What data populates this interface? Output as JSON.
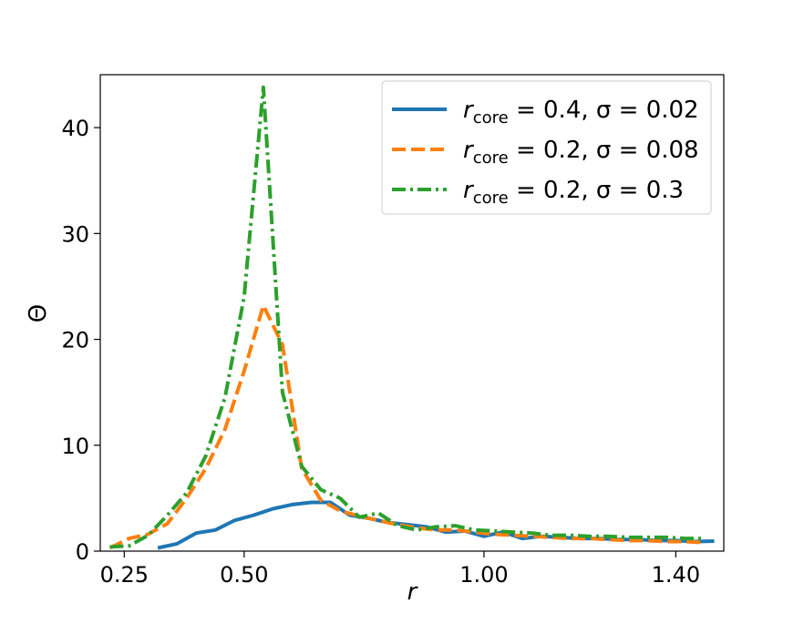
{
  "chart_data": {
    "type": "line",
    "title": "",
    "xlabel": "r",
    "ylabel": "Θ",
    "xlim": [
      0.2,
      1.5
    ],
    "ylim": [
      0,
      45
    ],
    "xticks": [
      0.25,
      0.5,
      1.0,
      1.4
    ],
    "xtick_labels": [
      "0.25",
      "0.50",
      "1.00",
      "1.40"
    ],
    "yticks": [
      0,
      10,
      20,
      30,
      40
    ],
    "ytick_labels": [
      "0",
      "10",
      "20",
      "30",
      "40"
    ],
    "grid": false,
    "legend_position": "top-right",
    "series": [
      {
        "name": "r_core = 0.4, σ = 0.02",
        "legend": {
          "main": "r",
          "sub": "core",
          "rest": " = 0.4, σ = 0.02"
        },
        "color": "#1f77b4",
        "style": "solid",
        "x": [
          0.32,
          0.36,
          0.4,
          0.44,
          0.48,
          0.52,
          0.56,
          0.6,
          0.64,
          0.68,
          0.72,
          0.76,
          0.8,
          0.84,
          0.88,
          0.92,
          0.96,
          1.0,
          1.04,
          1.08,
          1.12,
          1.16,
          1.2,
          1.24,
          1.28,
          1.32,
          1.36,
          1.4,
          1.44,
          1.48
        ],
        "y": [
          0.3,
          0.7,
          1.7,
          2.0,
          2.9,
          3.4,
          4.0,
          4.4,
          4.6,
          4.6,
          3.4,
          3.1,
          2.7,
          2.5,
          2.3,
          1.8,
          1.9,
          1.4,
          1.8,
          1.2,
          1.4,
          1.3,
          1.2,
          1.2,
          1.1,
          1.1,
          1.0,
          1.0,
          0.9,
          0.95
        ]
      },
      {
        "name": "r_core = 0.2, σ = 0.08",
        "legend": {
          "main": "r",
          "sub": "core",
          "rest": " = 0.2, σ = 0.08"
        },
        "color": "#ff7f0e",
        "style": "dashed",
        "x": [
          0.22,
          0.26,
          0.3,
          0.34,
          0.38,
          0.42,
          0.46,
          0.5,
          0.54,
          0.58,
          0.62,
          0.66,
          0.7,
          0.74,
          0.78,
          0.82,
          0.86,
          0.9,
          0.94,
          0.98,
          1.02,
          1.06,
          1.1,
          1.14,
          1.18,
          1.22,
          1.26,
          1.3,
          1.34,
          1.38,
          1.42,
          1.46
        ],
        "y": [
          0.3,
          1.2,
          1.6,
          2.6,
          5.0,
          7.8,
          11.5,
          17.0,
          23.2,
          19.5,
          7.8,
          4.8,
          3.8,
          3.3,
          2.9,
          2.5,
          2.2,
          2.0,
          2.0,
          1.8,
          1.6,
          1.5,
          1.4,
          1.3,
          1.2,
          1.2,
          1.1,
          1.0,
          1.0,
          0.9,
          0.9,
          0.8
        ]
      },
      {
        "name": "r_core = 0.2, σ = 0.3",
        "legend": {
          "main": "r",
          "sub": "core",
          "rest": " = 0.2, σ = 0.3"
        },
        "color": "#2ca02c",
        "style": "dashdot",
        "x": [
          0.22,
          0.26,
          0.3,
          0.34,
          0.38,
          0.42,
          0.46,
          0.5,
          0.54,
          0.58,
          0.62,
          0.66,
          0.7,
          0.74,
          0.78,
          0.82,
          0.86,
          0.9,
          0.94,
          0.98,
          1.02,
          1.06,
          1.1,
          1.14,
          1.18,
          1.22,
          1.26,
          1.3,
          1.34,
          1.38,
          1.42,
          1.46
        ],
        "y": [
          0.4,
          0.5,
          1.5,
          3.4,
          5.5,
          9.0,
          14.5,
          24.0,
          43.8,
          15.0,
          8.0,
          5.8,
          5.0,
          3.2,
          3.6,
          2.4,
          2.0,
          2.3,
          2.4,
          2.0,
          1.9,
          1.8,
          1.7,
          1.5,
          1.5,
          1.4,
          1.4,
          1.3,
          1.3,
          1.3,
          1.2,
          1.2
        ]
      }
    ]
  }
}
